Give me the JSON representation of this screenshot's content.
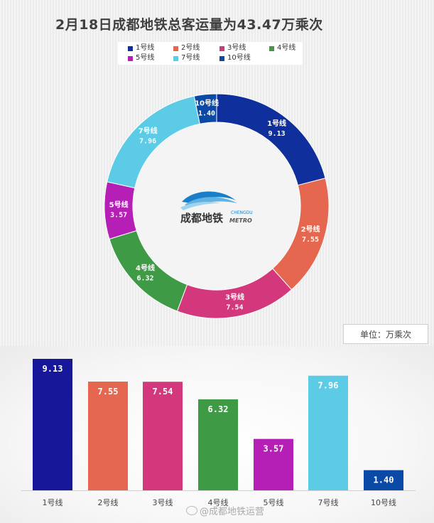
{
  "title": "2月18日成都地铁总客运量为43.47万乘次",
  "unit_label": "单位：万乘次",
  "logo": {
    "cn": "成都地铁",
    "en1": "CHENGDU",
    "en2": "METRO"
  },
  "watermark": "@成都地铁运营",
  "colors": {
    "line1": "#0e2f9c",
    "line2": "#e5674f",
    "line3": "#d4387c",
    "line4": "#3e9a44",
    "line5": "#b51fb5",
    "line7": "#5ccbe6",
    "line10": "#0a4aa6",
    "bar_line1": "#17179a"
  },
  "chart_data": [
    {
      "type": "pie",
      "variant": "donut",
      "title": "2月18日成都地铁总客运量为43.47万乘次",
      "legend": [
        "1号线",
        "2号线",
        "3号线",
        "4号线",
        "5号线",
        "7号线",
        "10号线"
      ],
      "legend_position": "top",
      "slices": [
        {
          "label": "1号线",
          "value": 9.13,
          "value_text": "9.13"
        },
        {
          "label": "2号线",
          "value": 7.55,
          "value_text": "7.55"
        },
        {
          "label": "3号线",
          "value": 7.54,
          "value_text": "7.54"
        },
        {
          "label": "4号线",
          "value": 6.32,
          "value_text": "6.32"
        },
        {
          "label": "5号线",
          "value": 3.57,
          "value_text": "3.57"
        },
        {
          "label": "7号线",
          "value": 7.96,
          "value_text": "7.96"
        },
        {
          "label": "10号线",
          "value": 1.4,
          "value_text": "1.40"
        }
      ],
      "unit": "万乘次"
    },
    {
      "type": "bar",
      "categories": [
        "1号线",
        "2号线",
        "3号线",
        "4号线",
        "5号线",
        "7号线",
        "10号线"
      ],
      "values": [
        9.13,
        7.55,
        7.54,
        6.32,
        3.57,
        7.96,
        1.4
      ],
      "value_labels": [
        "9.13",
        "7.55",
        "7.54",
        "6.32",
        "3.57",
        "7.96",
        "1.40"
      ],
      "ylim": [
        0,
        9.13
      ],
      "grid": false
    }
  ]
}
